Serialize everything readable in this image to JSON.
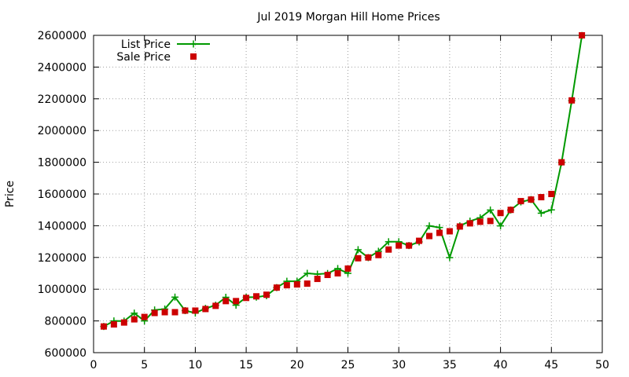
{
  "chart_data": {
    "type": "line",
    "title": "Jul 2019 Morgan Hill Home Prices",
    "xlabel": "",
    "ylabel": "Price",
    "xlim": [
      0,
      50
    ],
    "ylim": [
      600000,
      2600000
    ],
    "x_ticks": [
      0,
      5,
      10,
      15,
      20,
      25,
      30,
      35,
      40,
      45,
      50
    ],
    "y_ticks": [
      600000,
      800000,
      1000000,
      1200000,
      1400000,
      1600000,
      1800000,
      2000000,
      2200000,
      2400000,
      2600000
    ],
    "grid": true,
    "legend_position": "top-left",
    "x": [
      1,
      2,
      3,
      4,
      5,
      6,
      7,
      8,
      9,
      10,
      11,
      12,
      13,
      14,
      15,
      16,
      17,
      18,
      19,
      20,
      21,
      22,
      23,
      24,
      25,
      26,
      27,
      28,
      29,
      30,
      31,
      32,
      33,
      34,
      35,
      36,
      37,
      38,
      39,
      40,
      41,
      42,
      43,
      44,
      45,
      46,
      47,
      48
    ],
    "series": [
      {
        "name": "List Price",
        "style": "line-points",
        "color": "#009900",
        "values": [
          765000,
          800000,
          799000,
          849000,
          800000,
          869000,
          875000,
          950000,
          865000,
          850000,
          879000,
          899000,
          949000,
          899000,
          949000,
          950000,
          959000,
          1010000,
          1050000,
          1050000,
          1100000,
          1095000,
          1099000,
          1130000,
          1100000,
          1249000,
          1199000,
          1239000,
          1299000,
          1299000,
          1275000,
          1298000,
          1399000,
          1389000,
          1199000,
          1399000,
          1429000,
          1450000,
          1499000,
          1399000,
          1499000,
          1550000,
          1565000,
          1479000,
          1500000,
          1799000,
          2188000,
          2599000
        ]
      },
      {
        "name": "Sale Price",
        "style": "points",
        "color": "#cc0000",
        "values": [
          765000,
          778000,
          790000,
          810000,
          825000,
          850000,
          855000,
          855000,
          865000,
          865000,
          875000,
          895000,
          925000,
          925000,
          945000,
          955000,
          965000,
          1010000,
          1025000,
          1030000,
          1035000,
          1065000,
          1090000,
          1100000,
          1130000,
          1195000,
          1200000,
          1215000,
          1250000,
          1275000,
          1275000,
          1305000,
          1335000,
          1355000,
          1365000,
          1395000,
          1415000,
          1425000,
          1430000,
          1480000,
          1500000,
          1555000,
          1565000,
          1580000,
          1600000,
          1800000,
          2190000,
          2600000
        ]
      }
    ]
  }
}
